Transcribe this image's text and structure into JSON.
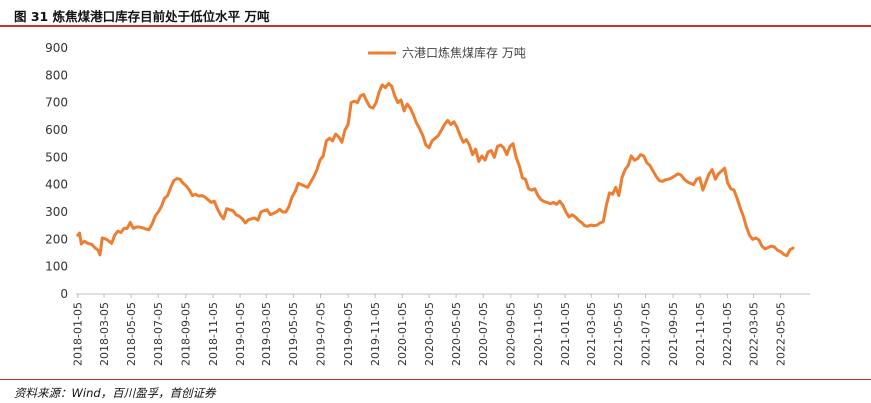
{
  "figure": {
    "title": "图 31 炼焦煤港口库存目前处于低位水平 万吨",
    "source": "资料来源：Wind，百川盈孚，首创证券"
  },
  "colors": {
    "series": "#ED7D31",
    "axis": "#bfbfbf",
    "rule": "#c0392b"
  },
  "chart_data": {
    "type": "line",
    "title": "",
    "xlabel": "",
    "ylabel": "",
    "ylim": [
      0,
      900
    ],
    "yticks": [
      0,
      100,
      200,
      300,
      400,
      500,
      600,
      700,
      800,
      900
    ],
    "xlim": [
      "2018-01-01",
      "2022-07-10"
    ],
    "xticks": [
      "2018-01-05",
      "2018-03-05",
      "2018-05-05",
      "2018-07-05",
      "2018-09-05",
      "2018-11-05",
      "2019-01-05",
      "2019-03-05",
      "2019-05-05",
      "2019-07-05",
      "2019-09-05",
      "2019-11-05",
      "2020-01-05",
      "2020-03-05",
      "2020-05-05",
      "2020-07-05",
      "2020-09-05",
      "2020-11-05",
      "2021-01-05",
      "2021-03-05",
      "2021-05-05",
      "2021-07-05",
      "2021-09-05",
      "2021-11-05",
      "2022-01-05",
      "2022-03-05",
      "2022-05-05"
    ],
    "grid": false,
    "legend": "top-center",
    "series": [
      {
        "name": "六港口炼焦煤库存 万吨",
        "points": [
          [
            "2018-01-05",
            215
          ],
          [
            "2018-01-09",
            223
          ],
          [
            "2018-01-13",
            183
          ],
          [
            "2018-01-20",
            193
          ],
          [
            "2018-01-28",
            185
          ],
          [
            "2018-02-05",
            182
          ],
          [
            "2018-02-12",
            170
          ],
          [
            "2018-02-20",
            160
          ],
          [
            "2018-02-24",
            143
          ],
          [
            "2018-03-01",
            205
          ],
          [
            "2018-03-08",
            202
          ],
          [
            "2018-03-15",
            195
          ],
          [
            "2018-03-22",
            185
          ],
          [
            "2018-03-29",
            215
          ],
          [
            "2018-04-05",
            230
          ],
          [
            "2018-04-12",
            225
          ],
          [
            "2018-04-19",
            240
          ],
          [
            "2018-04-26",
            240
          ],
          [
            "2018-05-03",
            262
          ],
          [
            "2018-05-10",
            240
          ],
          [
            "2018-05-17",
            245
          ],
          [
            "2018-05-24",
            245
          ],
          [
            "2018-05-31",
            242
          ],
          [
            "2018-06-07",
            238
          ],
          [
            "2018-06-14",
            235
          ],
          [
            "2018-06-21",
            255
          ],
          [
            "2018-06-28",
            285
          ],
          [
            "2018-07-05",
            300
          ],
          [
            "2018-07-12",
            320
          ],
          [
            "2018-07-19",
            350
          ],
          [
            "2018-07-26",
            360
          ],
          [
            "2018-08-02",
            390
          ],
          [
            "2018-08-09",
            415
          ],
          [
            "2018-08-16",
            422
          ],
          [
            "2018-08-23",
            420
          ],
          [
            "2018-08-30",
            405
          ],
          [
            "2018-09-06",
            395
          ],
          [
            "2018-09-13",
            380
          ],
          [
            "2018-09-20",
            360
          ],
          [
            "2018-09-27",
            365
          ],
          [
            "2018-10-04",
            358
          ],
          [
            "2018-10-11",
            360
          ],
          [
            "2018-10-18",
            355
          ],
          [
            "2018-10-25",
            345
          ],
          [
            "2018-11-01",
            335
          ],
          [
            "2018-11-08",
            340
          ],
          [
            "2018-11-15",
            312
          ],
          [
            "2018-11-22",
            290
          ],
          [
            "2018-11-29",
            275
          ],
          [
            "2018-12-06",
            312
          ],
          [
            "2018-12-13",
            308
          ],
          [
            "2018-12-20",
            305
          ],
          [
            "2018-12-27",
            290
          ],
          [
            "2019-01-03",
            285
          ],
          [
            "2019-01-10",
            275
          ],
          [
            "2019-01-17",
            260
          ],
          [
            "2019-01-24",
            272
          ],
          [
            "2019-01-31",
            275
          ],
          [
            "2019-02-07",
            278
          ],
          [
            "2019-02-14",
            270
          ],
          [
            "2019-02-21",
            300
          ],
          [
            "2019-02-28",
            305
          ],
          [
            "2019-03-07",
            308
          ],
          [
            "2019-03-14",
            290
          ],
          [
            "2019-03-21",
            295
          ],
          [
            "2019-03-28",
            300
          ],
          [
            "2019-04-04",
            310
          ],
          [
            "2019-04-11",
            300
          ],
          [
            "2019-04-18",
            300
          ],
          [
            "2019-04-25",
            320
          ],
          [
            "2019-05-02",
            355
          ],
          [
            "2019-05-09",
            375
          ],
          [
            "2019-05-16",
            405
          ],
          [
            "2019-05-23",
            400
          ],
          [
            "2019-05-30",
            395
          ],
          [
            "2019-06-06",
            390
          ],
          [
            "2019-06-13",
            410
          ],
          [
            "2019-06-20",
            430
          ],
          [
            "2019-06-27",
            455
          ],
          [
            "2019-07-04",
            490
          ],
          [
            "2019-07-11",
            505
          ],
          [
            "2019-07-18",
            560
          ],
          [
            "2019-07-25",
            570
          ],
          [
            "2019-08-01",
            560
          ],
          [
            "2019-08-08",
            585
          ],
          [
            "2019-08-15",
            575
          ],
          [
            "2019-08-22",
            555
          ],
          [
            "2019-08-29",
            600
          ],
          [
            "2019-09-05",
            620
          ],
          [
            "2019-09-12",
            700
          ],
          [
            "2019-09-19",
            705
          ],
          [
            "2019-09-26",
            700
          ],
          [
            "2019-10-03",
            725
          ],
          [
            "2019-10-10",
            730
          ],
          [
            "2019-10-17",
            705
          ],
          [
            "2019-10-24",
            685
          ],
          [
            "2019-10-31",
            680
          ],
          [
            "2019-11-07",
            700
          ],
          [
            "2019-11-14",
            740
          ],
          [
            "2019-11-21",
            765
          ],
          [
            "2019-11-28",
            755
          ],
          [
            "2019-12-05",
            770
          ],
          [
            "2019-12-12",
            760
          ],
          [
            "2019-12-19",
            725
          ],
          [
            "2019-12-26",
            700
          ],
          [
            "2020-01-02",
            710
          ],
          [
            "2020-01-09",
            670
          ],
          [
            "2020-01-16",
            695
          ],
          [
            "2020-01-23",
            680
          ],
          [
            "2020-01-30",
            655
          ],
          [
            "2020-02-06",
            625
          ],
          [
            "2020-02-13",
            605
          ],
          [
            "2020-02-20",
            580
          ],
          [
            "2020-02-27",
            545
          ],
          [
            "2020-03-05",
            535
          ],
          [
            "2020-03-12",
            560
          ],
          [
            "2020-03-19",
            570
          ],
          [
            "2020-03-26",
            580
          ],
          [
            "2020-04-02",
            600
          ],
          [
            "2020-04-09",
            620
          ],
          [
            "2020-04-16",
            635
          ],
          [
            "2020-04-23",
            620
          ],
          [
            "2020-04-30",
            630
          ],
          [
            "2020-05-07",
            610
          ],
          [
            "2020-05-14",
            580
          ],
          [
            "2020-05-21",
            555
          ],
          [
            "2020-05-28",
            565
          ],
          [
            "2020-06-04",
            545
          ],
          [
            "2020-06-11",
            510
          ],
          [
            "2020-06-18",
            530
          ],
          [
            "2020-06-25",
            485
          ],
          [
            "2020-07-02",
            505
          ],
          [
            "2020-07-09",
            490
          ],
          [
            "2020-07-16",
            520
          ],
          [
            "2020-07-23",
            525
          ],
          [
            "2020-07-30",
            500
          ],
          [
            "2020-08-06",
            540
          ],
          [
            "2020-08-13",
            545
          ],
          [
            "2020-08-20",
            535
          ],
          [
            "2020-08-27",
            510
          ],
          [
            "2020-09-03",
            540
          ],
          [
            "2020-09-10",
            550
          ],
          [
            "2020-09-17",
            500
          ],
          [
            "2020-09-24",
            470
          ],
          [
            "2020-10-01",
            425
          ],
          [
            "2020-10-08",
            420
          ],
          [
            "2020-10-15",
            385
          ],
          [
            "2020-10-22",
            380
          ],
          [
            "2020-10-29",
            385
          ],
          [
            "2020-11-05",
            360
          ],
          [
            "2020-11-12",
            345
          ],
          [
            "2020-11-19",
            338
          ],
          [
            "2020-11-26",
            335
          ],
          [
            "2020-12-03",
            330
          ],
          [
            "2020-12-10",
            335
          ],
          [
            "2020-12-17",
            328
          ],
          [
            "2020-12-24",
            340
          ],
          [
            "2020-12-31",
            325
          ],
          [
            "2021-01-07",
            300
          ],
          [
            "2021-01-14",
            282
          ],
          [
            "2021-01-21",
            290
          ],
          [
            "2021-01-28",
            282
          ],
          [
            "2021-02-04",
            270
          ],
          [
            "2021-02-11",
            262
          ],
          [
            "2021-02-18",
            250
          ],
          [
            "2021-02-25",
            248
          ],
          [
            "2021-03-04",
            252
          ],
          [
            "2021-03-11",
            250
          ],
          [
            "2021-03-18",
            252
          ],
          [
            "2021-03-25",
            260
          ],
          [
            "2021-04-01",
            265
          ],
          [
            "2021-04-08",
            325
          ],
          [
            "2021-04-15",
            370
          ],
          [
            "2021-04-22",
            365
          ],
          [
            "2021-04-29",
            390
          ],
          [
            "2021-05-06",
            360
          ],
          [
            "2021-05-13",
            425
          ],
          [
            "2021-05-20",
            455
          ],
          [
            "2021-05-27",
            470
          ],
          [
            "2021-06-03",
            505
          ],
          [
            "2021-06-10",
            490
          ],
          [
            "2021-06-17",
            495
          ],
          [
            "2021-06-24",
            510
          ],
          [
            "2021-07-01",
            505
          ],
          [
            "2021-07-08",
            480
          ],
          [
            "2021-07-15",
            470
          ],
          [
            "2021-07-22",
            450
          ],
          [
            "2021-07-29",
            430
          ],
          [
            "2021-08-05",
            415
          ],
          [
            "2021-08-12",
            412
          ],
          [
            "2021-08-19",
            418
          ],
          [
            "2021-08-26",
            420
          ],
          [
            "2021-09-02",
            425
          ],
          [
            "2021-09-09",
            432
          ],
          [
            "2021-09-16",
            440
          ],
          [
            "2021-09-23",
            435
          ],
          [
            "2021-09-30",
            420
          ],
          [
            "2021-10-07",
            410
          ],
          [
            "2021-10-14",
            405
          ],
          [
            "2021-10-21",
            400
          ],
          [
            "2021-10-28",
            420
          ],
          [
            "2021-11-04",
            425
          ],
          [
            "2021-11-11",
            380
          ],
          [
            "2021-11-18",
            410
          ],
          [
            "2021-11-25",
            440
          ],
          [
            "2021-12-02",
            455
          ],
          [
            "2021-12-09",
            420
          ],
          [
            "2021-12-16",
            440
          ],
          [
            "2021-12-23",
            450
          ],
          [
            "2021-12-30",
            460
          ],
          [
            "2022-01-06",
            405
          ],
          [
            "2022-01-13",
            385
          ],
          [
            "2022-01-20",
            380
          ],
          [
            "2022-01-27",
            350
          ],
          [
            "2022-02-03",
            315
          ],
          [
            "2022-02-10",
            285
          ],
          [
            "2022-02-17",
            245
          ],
          [
            "2022-02-24",
            215
          ],
          [
            "2022-03-03",
            200
          ],
          [
            "2022-03-10",
            205
          ],
          [
            "2022-03-17",
            198
          ],
          [
            "2022-03-24",
            175
          ],
          [
            "2022-03-31",
            165
          ],
          [
            "2022-04-07",
            170
          ],
          [
            "2022-04-14",
            175
          ],
          [
            "2022-04-21",
            172
          ],
          [
            "2022-04-28",
            160
          ],
          [
            "2022-05-05",
            155
          ],
          [
            "2022-05-12",
            145
          ],
          [
            "2022-05-19",
            140
          ],
          [
            "2022-05-26",
            162
          ],
          [
            "2022-06-02",
            168
          ]
        ]
      }
    ]
  }
}
